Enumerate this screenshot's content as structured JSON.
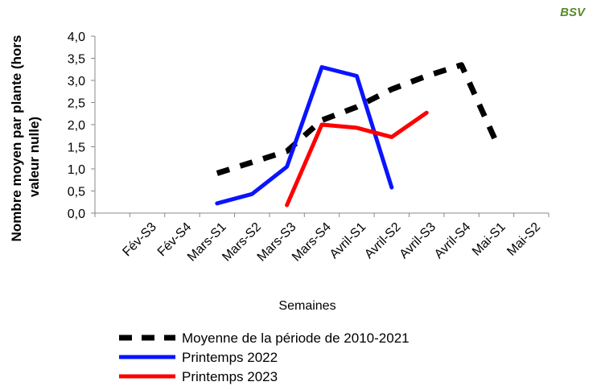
{
  "chart_data": {
    "type": "line",
    "logo": "BSV",
    "y_label": [
      "Nombre moyen par plante (hors",
      "valeur nulle)"
    ],
    "x_label": "Semaines",
    "categories": [
      null,
      "Fév-S3",
      "Fév-S4",
      "Mars-S1",
      "Mars-S2",
      "Mars-S3",
      "Mars-S4",
      "Avril-S1",
      "Avril-S2",
      "Avril-S3",
      "Avril-S4",
      "Mai-S1",
      "Mai-S2"
    ],
    "series": [
      {
        "name": "Moyenne de la période de 2010-2021",
        "color": "#000000",
        "dashed": true,
        "values": [
          null,
          null,
          null,
          0.9,
          1.15,
          1.4,
          2.1,
          2.4,
          2.8,
          3.1,
          3.35,
          1.6,
          null
        ]
      },
      {
        "name": "Printemps 2022",
        "color": "#0a14ff",
        "dashed": false,
        "values": [
          null,
          null,
          null,
          0.22,
          0.43,
          1.05,
          3.3,
          3.1,
          0.58,
          null,
          null,
          null,
          null
        ]
      },
      {
        "name": "Printemps 2023",
        "color": "#ff0000",
        "dashed": false,
        "values": [
          null,
          null,
          null,
          null,
          null,
          0.18,
          2.0,
          1.93,
          1.72,
          2.27,
          null,
          null,
          null
        ]
      }
    ],
    "ylim": [
      0,
      4
    ],
    "yticks": [
      {
        "value": 0,
        "label": "0,0"
      },
      {
        "value": 0.5,
        "label": "0,5"
      },
      {
        "value": 1,
        "label": "1,0"
      },
      {
        "value": 1.5,
        "label": "1,5"
      },
      {
        "value": 2,
        "label": "2,0"
      },
      {
        "value": 2.5,
        "label": "2,5"
      },
      {
        "value": 3,
        "label": "3,0"
      },
      {
        "value": 3.5,
        "label": "3,5"
      },
      {
        "value": 4,
        "label": "4,0"
      }
    ],
    "grid": false
  }
}
